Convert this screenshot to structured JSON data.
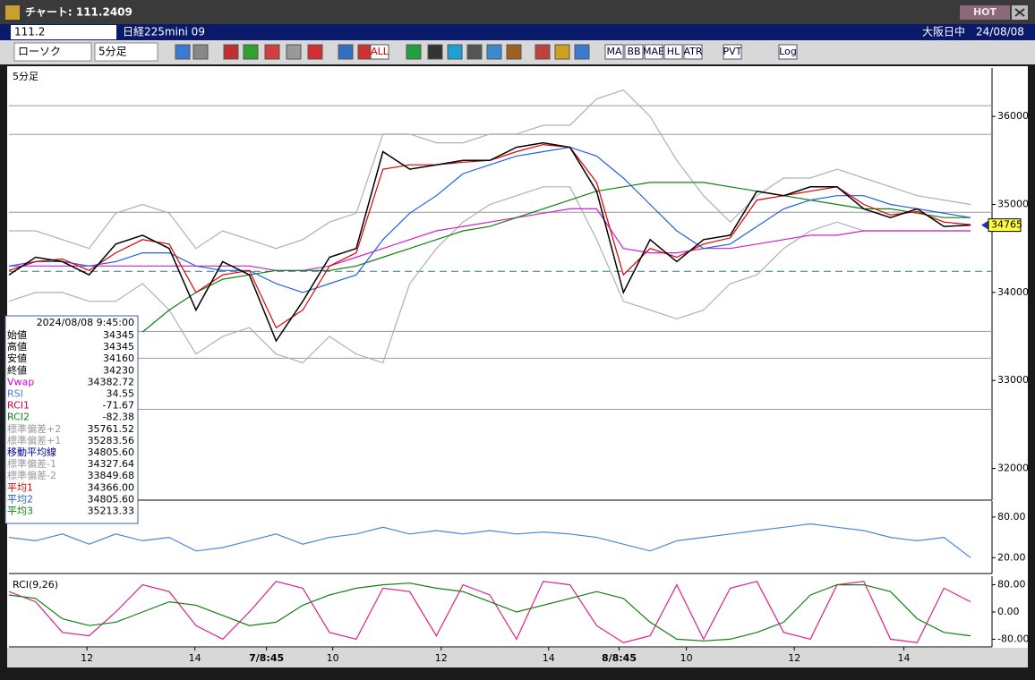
{
  "window": {
    "title": "チャート: 111.2409",
    "badge": "HOT"
  },
  "toolbar": {
    "code": "111.2",
    "instrument": "日経225mini 09",
    "session": "大阪日中",
    "date": "24/08/08",
    "chart_style": "ローソク",
    "interval": "5分足",
    "buttons": [
      "ALL",
      "MA",
      "BB",
      "MAE",
      "HL",
      "ATR",
      "PVT",
      "Log"
    ]
  },
  "info_box": {
    "datetime": "2024/08/08  9:45:00",
    "rows": [
      {
        "label": "始値",
        "value": "34345",
        "color": "#000000"
      },
      {
        "label": "高値",
        "value": "34345",
        "color": "#000000"
      },
      {
        "label": "安値",
        "value": "34160",
        "color": "#000000"
      },
      {
        "label": "終値",
        "value": "34230",
        "color": "#000000"
      },
      {
        "label": "Vwap",
        "value": "34382.72",
        "color": "#d000d0"
      },
      {
        "label": "RSI",
        "value": "34.55",
        "color": "#4a7fd0"
      },
      {
        "label": "RCI1",
        "value": "-71.67",
        "color": "#d00040"
      },
      {
        "label": "RCI2",
        "value": "-82.38",
        "color": "#108010"
      },
      {
        "label": "標準偏差+2",
        "value": "35761.52",
        "color": "#9a9a9a"
      },
      {
        "label": "標準偏差+1",
        "value": "35283.56",
        "color": "#9a9a9a"
      },
      {
        "label": "移動平均線",
        "value": "34805.60",
        "color": "#0000a0"
      },
      {
        "label": "標準偏差-1",
        "value": "34327.64",
        "color": "#9a9a9a"
      },
      {
        "label": "標準偏差-2",
        "value": "33849.68",
        "color": "#9a9a9a"
      },
      {
        "label": "平均1",
        "value": "34366.00",
        "color": "#e00000"
      },
      {
        "label": "平均2",
        "value": "34805.60",
        "color": "#2060e0"
      },
      {
        "label": "平均3",
        "value": "35213.33",
        "color": "#108010"
      }
    ]
  },
  "chart_data": [
    {
      "type": "line",
      "title": "5分足",
      "xlim": [
        0,
        184
      ],
      "ylim": [
        31650,
        36530
      ],
      "yticks": [
        32000,
        33000,
        34000,
        35000,
        36000
      ],
      "last_value_label": 34765,
      "hlines": [
        36122,
        35796,
        34911,
        33557,
        33252,
        32672
      ],
      "reference_line": 34240,
      "x": [
        0,
        5,
        10,
        15,
        20,
        25,
        30,
        35,
        40,
        45,
        50,
        55,
        60,
        65,
        70,
        75,
        80,
        85,
        90,
        95,
        100,
        105,
        110,
        115,
        120,
        125,
        130,
        135,
        140,
        145,
        150,
        155,
        160,
        165,
        170,
        175,
        180
      ],
      "series": [
        {
          "name": "標準偏差+2",
          "color": "#b0b0b0",
          "values": [
            34700,
            34700,
            34600,
            34500,
            34900,
            35000,
            34900,
            34500,
            34700,
            34600,
            34500,
            34600,
            34800,
            34900,
            35800,
            35800,
            35700,
            35700,
            35800,
            35800,
            35900,
            35900,
            36200,
            36300,
            36000,
            35500,
            35100,
            34800,
            35100,
            35300,
            35300,
            35400,
            35300,
            35200,
            35100,
            35050,
            35000
          ]
        },
        {
          "name": "標準偏差-2",
          "color": "#b0b0b0",
          "values": [
            33900,
            34000,
            34000,
            33900,
            33900,
            34100,
            33800,
            33300,
            33500,
            33600,
            33300,
            33200,
            33500,
            33300,
            33200,
            34100,
            34500,
            34800,
            35000,
            35100,
            35200,
            35200,
            34600,
            33900,
            33800,
            33700,
            33800,
            34100,
            34200,
            34500,
            34700,
            34800,
            34700,
            34700,
            34700,
            34700,
            34700
          ]
        },
        {
          "name": "Vwap",
          "color": "#d020d0",
          "values": [
            34300,
            34300,
            34300,
            34300,
            34300,
            34300,
            34300,
            34300,
            34300,
            34300,
            34250,
            34250,
            34300,
            34400,
            34500,
            34600,
            34700,
            34750,
            34800,
            34850,
            34900,
            34950,
            34950,
            34500,
            34450,
            34450,
            34500,
            34500,
            34550,
            34600,
            34650,
            34650,
            34700,
            34700,
            34700,
            34700,
            34700
          ]
        },
        {
          "name": "平均3",
          "color": "#108010",
          "values": [
            null,
            null,
            null,
            null,
            null,
            33550,
            33800,
            34000,
            34150,
            34200,
            34250,
            34250,
            34250,
            34300,
            34400,
            34500,
            34600,
            34700,
            34750,
            34850,
            34950,
            35050,
            35150,
            35200,
            35250,
            35250,
            35250,
            35200,
            35150,
            35100,
            35050,
            35000,
            34950,
            34950,
            34900,
            34850,
            34850
          ]
        },
        {
          "name": "平均2",
          "color": "#2060e0",
          "values": [
            34300,
            34350,
            34350,
            34300,
            34350,
            34450,
            34450,
            34300,
            34250,
            34250,
            34100,
            34000,
            34100,
            34200,
            34600,
            34900,
            35100,
            35350,
            35450,
            35550,
            35600,
            35650,
            35550,
            35300,
            35000,
            34700,
            34500,
            34550,
            34750,
            34950,
            35050,
            35100,
            35100,
            35000,
            34950,
            34900,
            34850
          ]
        },
        {
          "name": "平均1",
          "color": "#e00000",
          "values": [
            34250,
            34350,
            34380,
            34250,
            34450,
            34600,
            34550,
            34000,
            34200,
            34250,
            33600,
            33800,
            34300,
            34450,
            35400,
            35450,
            35450,
            35480,
            35500,
            35600,
            35680,
            35650,
            35250,
            34200,
            34500,
            34400,
            34550,
            34620,
            35050,
            35100,
            35150,
            35200,
            35000,
            34880,
            34920,
            34800,
            34770
          ]
        },
        {
          "name": "終値",
          "color": "#000000",
          "values": [
            34200,
            34400,
            34350,
            34200,
            34550,
            34650,
            34500,
            33800,
            34350,
            34200,
            33450,
            33900,
            34400,
            34500,
            35600,
            35400,
            35450,
            35500,
            35500,
            35650,
            35700,
            35650,
            35150,
            34000,
            34600,
            34350,
            34600,
            34650,
            35150,
            35100,
            35200,
            35200,
            34950,
            34850,
            34950,
            34750,
            34765
          ]
        }
      ]
    },
    {
      "type": "line",
      "xlim": [
        0,
        184
      ],
      "ylim": [
        -2,
        101
      ],
      "yticks": [
        {
          "value": 80,
          "label": "80.00"
        },
        {
          "value": 20,
          "label": "20.00"
        }
      ],
      "x": [
        0,
        5,
        10,
        15,
        20,
        25,
        30,
        35,
        40,
        45,
        50,
        55,
        60,
        65,
        70,
        75,
        80,
        85,
        90,
        95,
        100,
        105,
        110,
        115,
        120,
        125,
        130,
        135,
        140,
        145,
        150,
        155,
        160,
        165,
        170,
        175,
        180
      ],
      "series": [
        {
          "name": "RSI",
          "color": "#4a88d8",
          "values": [
            50,
            45,
            55,
            40,
            55,
            45,
            50,
            30,
            35,
            45,
            55,
            40,
            50,
            55,
            65,
            55,
            60,
            55,
            60,
            55,
            58,
            55,
            50,
            40,
            30,
            45,
            50,
            55,
            60,
            65,
            70,
            65,
            60,
            50,
            45,
            50,
            20
          ]
        }
      ]
    },
    {
      "type": "line",
      "title": "RCI(9,26)",
      "xlim": [
        0,
        184
      ],
      "ylim": [
        -100,
        100
      ],
      "yticks": [
        {
          "value": 80,
          "label": "80.00"
        },
        {
          "value": 0,
          "label": "0.00"
        },
        {
          "value": -80,
          "label": "-80.00"
        }
      ],
      "xticks": [
        {
          "value": 14.6,
          "label": "12"
        },
        {
          "value": 34.8,
          "label": "14"
        },
        {
          "value": 48.2,
          "label": "7/8:45"
        },
        {
          "value": 60.6,
          "label": "10"
        },
        {
          "value": 80.9,
          "label": "12"
        },
        {
          "value": 101,
          "label": "14"
        },
        {
          "value": 114.2,
          "label": "8/8:45"
        },
        {
          "value": 126.8,
          "label": "10"
        },
        {
          "value": 147,
          "label": "12"
        },
        {
          "value": 167.5,
          "label": "14"
        }
      ],
      "x": [
        0,
        5,
        10,
        15,
        20,
        25,
        30,
        35,
        40,
        45,
        50,
        55,
        60,
        65,
        70,
        75,
        80,
        85,
        90,
        95,
        100,
        105,
        110,
        115,
        120,
        125,
        130,
        135,
        140,
        145,
        150,
        155,
        160,
        165,
        170,
        175,
        180
      ],
      "series": [
        {
          "name": "RCI1",
          "color": "#e0208a",
          "values": [
            60,
            30,
            -60,
            -70,
            0,
            80,
            60,
            -40,
            -80,
            0,
            90,
            70,
            -60,
            -80,
            70,
            60,
            -70,
            80,
            50,
            -80,
            90,
            80,
            -40,
            -90,
            -70,
            80,
            -80,
            70,
            90,
            -60,
            -80,
            80,
            90,
            -80,
            -90,
            70,
            30
          ]
        },
        {
          "name": "RCI2",
          "color": "#108010",
          "values": [
            50,
            40,
            -20,
            -40,
            -30,
            0,
            30,
            20,
            -10,
            -40,
            -30,
            20,
            50,
            70,
            80,
            85,
            70,
            60,
            30,
            0,
            20,
            40,
            60,
            40,
            -30,
            -80,
            -85,
            -80,
            -60,
            -30,
            50,
            80,
            80,
            60,
            -20,
            -60,
            -70
          ]
        }
      ]
    }
  ]
}
